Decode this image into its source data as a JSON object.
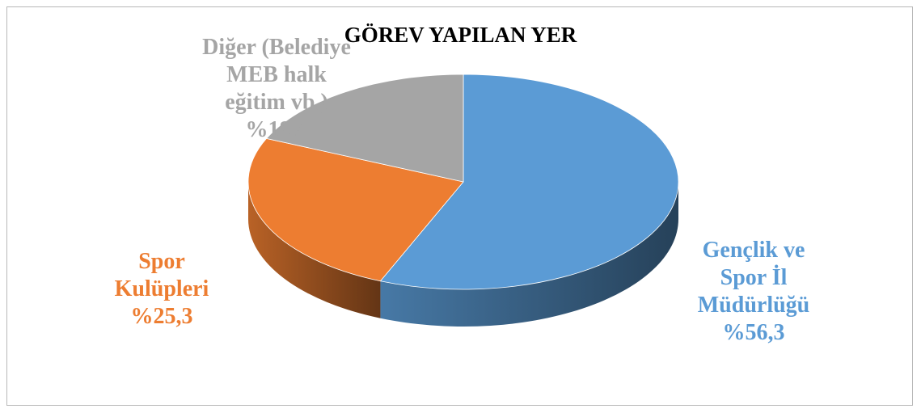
{
  "chart_data": {
    "type": "pie",
    "title": "GÖREV YAPILAN YER",
    "slices": [
      {
        "lines": [
          "Gençlik ve",
          "Spor İl",
          "Müdürlüğü",
          "%56,3"
        ],
        "value": 56.3,
        "color": "#5b9bd5"
      },
      {
        "lines": [
          "Spor",
          "Kulüpleri",
          "%25,3"
        ],
        "value": 25.3,
        "color": "#ed7d31"
      },
      {
        "lines": [
          "Diğer (Belediye",
          "MEB halk",
          "eğitim vb.)",
          "%18,4"
        ],
        "value": 18.4,
        "color": "#a5a5a5"
      }
    ],
    "label_colors": [
      "#5b9bd5",
      "#ed7d31",
      "#a5a5a5"
    ],
    "style": "3d-pie",
    "legend": "none"
  }
}
